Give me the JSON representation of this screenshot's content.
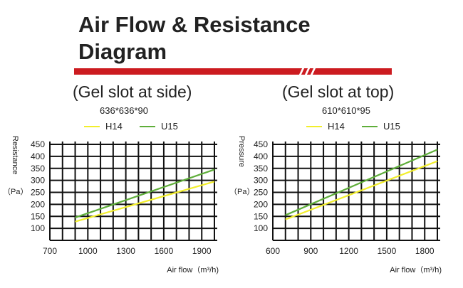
{
  "page": {
    "title": "Air Flow & Resistance Diagram"
  },
  "chart_data": [
    {
      "type": "line",
      "title": "(Gel slot at side)",
      "subtitle": "636*636*90",
      "xlabel": "Air flow（m³/h)",
      "ylabel": "Resistance",
      "ylabel_unit": "（Pa）",
      "xlim": [
        700,
        2000
      ],
      "ylim": [
        50,
        450
      ],
      "x_ticks": [
        700,
        1000,
        1300,
        1600,
        1900
      ],
      "y_ticks": [
        100,
        150,
        200,
        250,
        300,
        350,
        400,
        450
      ],
      "grid": true,
      "legend": "top",
      "series": [
        {
          "name": "H14",
          "color": "#f2ee2c",
          "x": [
            900,
            2000
          ],
          "y": [
            128,
            295
          ]
        },
        {
          "name": "U15",
          "color": "#5fae3a",
          "x": [
            900,
            2000
          ],
          "y": [
            145,
            345
          ]
        }
      ]
    },
    {
      "type": "line",
      "title": "(Gel slot at top)",
      "subtitle": "610*610*95",
      "xlabel": "Air flow（m³/h)",
      "ylabel": "Pressure",
      "ylabel_unit": "（Pa）",
      "xlim": [
        600,
        1900
      ],
      "ylim": [
        50,
        450
      ],
      "x_ticks": [
        600,
        900,
        1200,
        1500,
        1800
      ],
      "y_ticks": [
        100,
        150,
        200,
        250,
        300,
        350,
        400,
        450
      ],
      "grid": true,
      "legend": "top",
      "series": [
        {
          "name": "H14",
          "color": "#f2ee2c",
          "x": [
            700,
            1900
          ],
          "y": [
            137,
            380
          ]
        },
        {
          "name": "U15",
          "color": "#5fae3a",
          "x": [
            700,
            1900
          ],
          "y": [
            155,
            428
          ]
        }
      ]
    }
  ]
}
